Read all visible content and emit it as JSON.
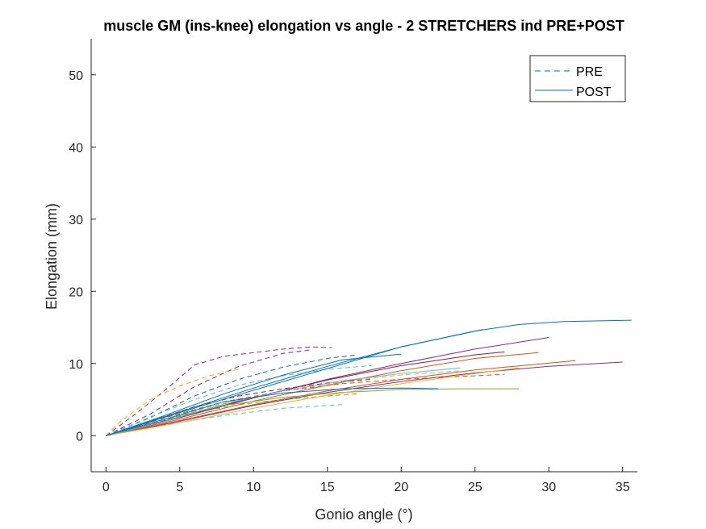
{
  "chart_data": {
    "type": "line",
    "title": "muscle GM (ins-knee) elongation vs angle - 2 STRETCHERS ind PRE+POST",
    "xlabel": "Gonio angle (°)",
    "ylabel": "Elongation (mm)",
    "xlim": [
      -1,
      36
    ],
    "ylim": [
      -5,
      55
    ],
    "xticks": [
      0,
      5,
      10,
      15,
      20,
      25,
      30,
      35
    ],
    "yticks": [
      0,
      10,
      20,
      30,
      40,
      50
    ],
    "grid": false,
    "legend": {
      "placement": "top-right",
      "entries": [
        {
          "label": "PRE",
          "style": "dashed",
          "color": "#0072BD"
        },
        {
          "label": "POST",
          "style": "solid",
          "color": "#0072BD"
        }
      ]
    },
    "series": [
      {
        "style": "dashed",
        "color": "#7E2F8E",
        "x": [
          0,
          2,
          4,
          6,
          8,
          10,
          12,
          14,
          15.3
        ],
        "y": [
          0,
          3,
          6.3,
          9.8,
          11,
          11.5,
          12,
          12.3,
          12.2
        ]
      },
      {
        "style": "dashed",
        "color": "#7E2F8E",
        "x": [
          0,
          3,
          6,
          9,
          12,
          14
        ],
        "y": [
          0,
          3,
          6.8,
          9.6,
          11.4,
          11.9
        ]
      },
      {
        "style": "dashed",
        "color": "#EDB120",
        "x": [
          0,
          1,
          3,
          5,
          7,
          9
        ],
        "y": [
          0,
          2,
          5,
          6.9,
          8.3,
          9.2
        ]
      },
      {
        "style": "dashed",
        "color": "#0072BD",
        "x": [
          0,
          3,
          6,
          9,
          12,
          15,
          17
        ],
        "y": [
          0,
          2.5,
          5.5,
          7.8,
          9.5,
          10.7,
          11.2
        ]
      },
      {
        "style": "dashed",
        "color": "#4DBEEE",
        "x": [
          0,
          4,
          8,
          12,
          16
        ],
        "y": [
          0,
          1.5,
          2.8,
          3.8,
          4.3
        ]
      },
      {
        "style": "dashed",
        "color": "#77AC30",
        "x": [
          0,
          3,
          6,
          9,
          12,
          15,
          17
        ],
        "y": [
          0,
          1.7,
          3.2,
          4.3,
          5,
          5.5,
          5.8
        ]
      },
      {
        "style": "dashed",
        "color": "#D95319",
        "x": [
          0,
          4,
          8,
          12,
          16,
          20,
          24,
          27
        ],
        "y": [
          0,
          2.5,
          4.7,
          6.2,
          7.2,
          7.8,
          8.2,
          8.5
        ]
      },
      {
        "style": "dashed",
        "color": "#A2142F",
        "x": [
          0,
          3,
          6,
          9,
          12,
          15,
          18
        ],
        "y": [
          0,
          2,
          4,
          5.5,
          6.5,
          7.3,
          7.8
        ]
      },
      {
        "style": "dashed",
        "color": "#EDB120",
        "x": [
          0,
          4,
          8,
          12,
          16,
          20,
          24
        ],
        "y": [
          0,
          2.3,
          4.5,
          6.2,
          7.5,
          8.4,
          9
        ]
      },
      {
        "style": "dashed",
        "color": "#4DBEEE",
        "x": [
          0,
          3,
          6,
          9,
          12,
          15,
          18
        ],
        "y": [
          0,
          2.6,
          5,
          7,
          8.3,
          9.2,
          9.7
        ]
      },
      {
        "style": "solid",
        "color": "#0072BD",
        "x": [
          0,
          5,
          10,
          15,
          20,
          25,
          28,
          31,
          35.6
        ],
        "y": [
          0,
          3.3,
          6.6,
          9.6,
          12.3,
          14.5,
          15.4,
          15.8,
          16
        ]
      },
      {
        "style": "solid",
        "color": "#0072BD",
        "x": [
          0,
          5,
          10,
          15,
          20,
          25.5
        ],
        "y": [
          0,
          3.2,
          6.3,
          9.3,
          12.3,
          14.7
        ]
      },
      {
        "style": "solid",
        "color": "#7E2F8E",
        "x": [
          0,
          5,
          10,
          15,
          20,
          25,
          30
        ],
        "y": [
          0,
          2.5,
          5.2,
          7.8,
          10,
          12,
          13.6
        ]
      },
      {
        "style": "solid",
        "color": "#D95319",
        "x": [
          0,
          5,
          10,
          15,
          20,
          25,
          29.3
        ],
        "y": [
          0,
          2.3,
          4.8,
          7,
          9,
          10.7,
          11.5
        ]
      },
      {
        "style": "solid",
        "color": "#A2142F",
        "x": [
          0,
          5,
          10,
          15,
          20,
          25,
          27
        ],
        "y": [
          0,
          2.6,
          5.3,
          7.7,
          9.7,
          11.2,
          11.6
        ]
      },
      {
        "style": "solid",
        "color": "#7E2F8E",
        "x": [
          0,
          5,
          10,
          15,
          20,
          25,
          30,
          35
        ],
        "y": [
          0,
          2,
          4.2,
          6,
          7.5,
          8.7,
          9.6,
          10.2
        ]
      },
      {
        "style": "solid",
        "color": "#D95319",
        "x": [
          0,
          5,
          10,
          15,
          20,
          25,
          31.8
        ],
        "y": [
          0,
          2.1,
          4.3,
          6.2,
          7.8,
          9.1,
          10.4
        ]
      },
      {
        "style": "solid",
        "color": "#77AC30",
        "x": [
          0,
          4,
          8,
          12,
          16,
          20,
          24,
          28
        ],
        "y": [
          0,
          2.3,
          4.2,
          5.3,
          6,
          6.4,
          6.5,
          6.5
        ]
      },
      {
        "style": "solid",
        "color": "#4DBEEE",
        "x": [
          0,
          4,
          8,
          12,
          16,
          20,
          24
        ],
        "y": [
          0,
          2,
          4.4,
          6.2,
          7.6,
          8.6,
          9.4
        ]
      },
      {
        "style": "solid",
        "color": "#EDB120",
        "x": [
          0,
          5,
          10,
          15,
          20,
          25,
          28
        ],
        "y": [
          0,
          1.8,
          3.8,
          5.6,
          7.2,
          8.6,
          9.4
        ]
      },
      {
        "style": "solid",
        "color": "#0072BD",
        "x": [
          0,
          4,
          8,
          12,
          16,
          20,
          22.5
        ],
        "y": [
          0,
          2.3,
          4.7,
          5.9,
          6.5,
          6.6,
          6.5
        ]
      },
      {
        "style": "solid",
        "color": "#0072BD",
        "x": [
          0,
          4,
          8,
          12,
          16,
          20
        ],
        "y": [
          0,
          2.8,
          5.8,
          8.4,
          10.5,
          11.3
        ]
      }
    ]
  }
}
